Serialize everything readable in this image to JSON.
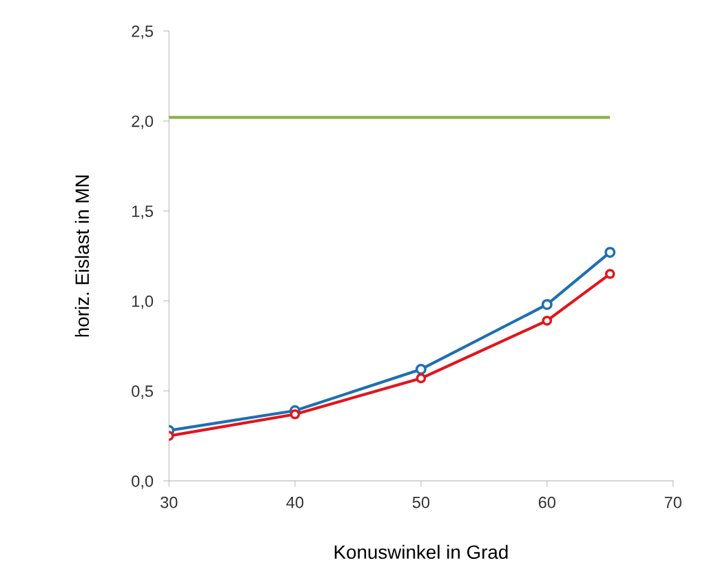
{
  "chart_data": {
    "type": "line",
    "xlabel": "Konuswinkel in Grad",
    "ylabel": "horiz. Eislast in MN",
    "x": [
      30,
      40,
      50,
      60,
      65
    ],
    "series": [
      {
        "color": "#8db04e",
        "x": [
          30,
          65
        ],
        "values": [
          2.02,
          2.02
        ],
        "marker": "none"
      },
      {
        "color": "#1f6fb2",
        "values": [
          0.28,
          0.39,
          0.62,
          0.98,
          1.27
        ],
        "marker": "circle"
      },
      {
        "color": "#e3141b",
        "values": [
          0.25,
          0.37,
          0.57,
          0.89,
          1.15
        ],
        "marker": "circle"
      }
    ],
    "xlim": [
      30,
      70
    ],
    "xticks": [
      30,
      40,
      50,
      60,
      70
    ],
    "ylim": [
      0,
      2.5
    ],
    "yticks": [
      {
        "value": 0,
        "label": "0,0"
      },
      {
        "value": 0.5,
        "label": "0,5"
      },
      {
        "value": 1,
        "label": "1,0"
      },
      {
        "value": 1.5,
        "label": "1,5"
      },
      {
        "value": 2,
        "label": "2,0"
      },
      {
        "value": 2.5,
        "label": "2,5"
      }
    ],
    "grid": false
  }
}
